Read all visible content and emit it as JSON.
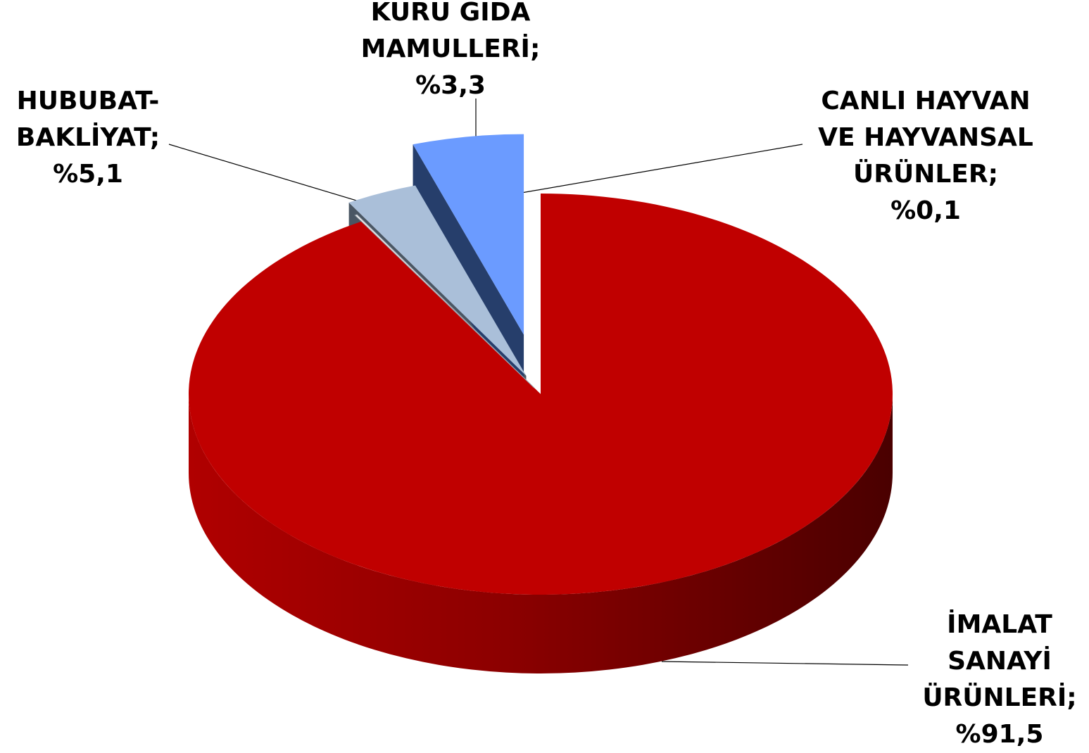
{
  "chart_data": {
    "type": "pie",
    "slices": [
      {
        "name_lines": [
          "İMALAT",
          "SANAYİ",
          "ÜRÜNLERİ;"
        ],
        "value_text": "%91,5",
        "value": 91.5,
        "color": "#c00000",
        "side": "#8a0000"
      },
      {
        "name_lines": [
          "CANLI HAYVAN",
          "VE HAYVANSAL",
          "ÜRÜNLER;"
        ],
        "value_text": "%0,1",
        "value": 0.1,
        "color": "#f2f2f2",
        "side": "#bfbfbf"
      },
      {
        "name_lines": [
          "KURU GIDA",
          "MAMULLERİ;"
        ],
        "value_text": "%3,3",
        "value": 3.3,
        "color": "#aabfd9",
        "side": "#4a5663"
      },
      {
        "name_lines": [
          "HUBUBAT-",
          "BAKLİYAT;"
        ],
        "value_text": "%5,1",
        "value": 5.1,
        "color": "#6b9bff",
        "side": "#263e6b"
      }
    ]
  }
}
